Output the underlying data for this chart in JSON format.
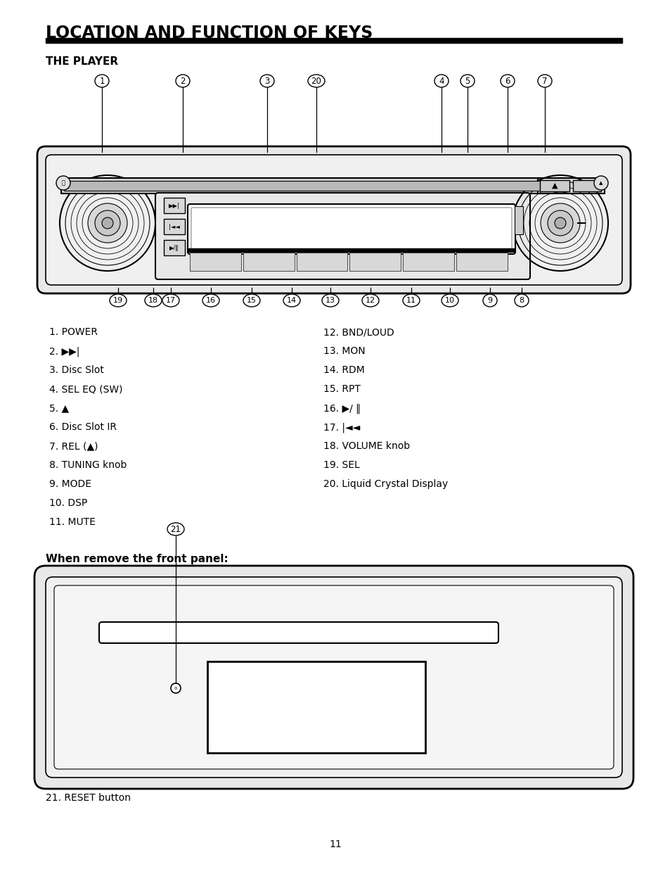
{
  "title": "LOCATION AND FUNCTION OF KEYS",
  "section1_title": "THE PLAYER",
  "section2_title": "When remove the front panel:",
  "left_list": [
    "1. POWER",
    "2. ▶▶|",
    "3. Disc Slot",
    "4. SEL EQ (SW)",
    "5. ▲",
    "6. Disc Slot IR",
    "7. REL (▲)",
    "8. TUNING knob",
    "9. MODE",
    "10. DSP",
    "11. MUTE"
  ],
  "right_list": [
    "12. BND/LOUD",
    "13. MON",
    "14. RDM",
    "15. RPT",
    "16. ▶/ ‖",
    "17. |◄◄",
    "18. VOLUME knob",
    "19. SEL",
    "20. Liquid Crystal Display"
  ],
  "footer": "21. RESET button",
  "page_number": "11",
  "bg_color": "#ffffff",
  "text_color": "#000000"
}
